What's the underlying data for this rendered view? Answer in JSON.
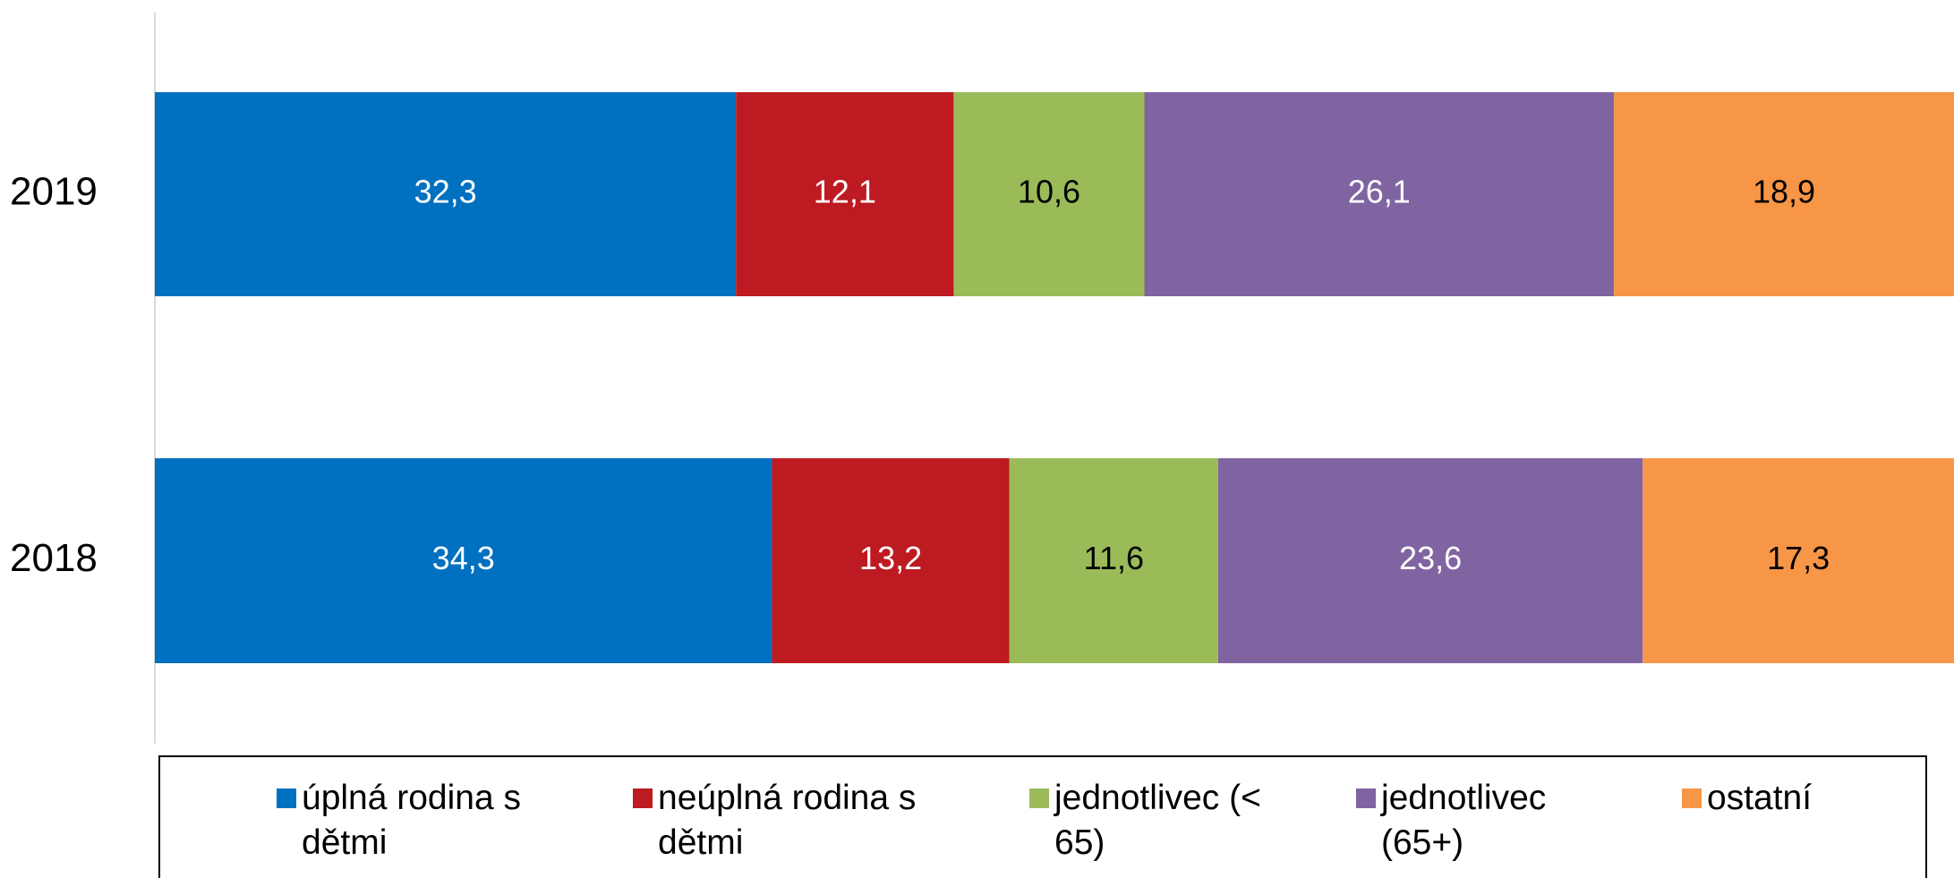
{
  "chart_data": {
    "type": "stacked-bar-horizontal",
    "categories": [
      "2019",
      "2018"
    ],
    "xlim": [
      0,
      100
    ],
    "legend": "bottom",
    "series": [
      {
        "name": "úplná rodina s dětmi",
        "color": "#0070c0",
        "label_color": "#ffffff",
        "values": [
          32.3,
          34.3
        ],
        "value_labels": [
          "32,3",
          "34,3"
        ]
      },
      {
        "name": "neúplná rodina s dětmi",
        "color": "#be1a22",
        "label_color": "#ffffff",
        "values": [
          12.1,
          13.2
        ],
        "value_labels": [
          "12,1",
          "13,2"
        ]
      },
      {
        "name": "jednotlivec (< 65)",
        "color": "#9bbb59",
        "label_color": "#000000",
        "values": [
          10.6,
          11.6
        ],
        "value_labels": [
          "10,6",
          "11,6"
        ]
      },
      {
        "name": "jednotlivec (65+)",
        "color": "#8064a2",
        "label_color": "#ffffff",
        "values": [
          26.1,
          23.6
        ],
        "value_labels": [
          "26,1",
          "23,6"
        ]
      },
      {
        "name": "ostatní",
        "color": "#f79646",
        "label_color": "#000000",
        "values": [
          18.9,
          17.3
        ],
        "value_labels": [
          "18,9",
          "17,3"
        ]
      }
    ]
  }
}
